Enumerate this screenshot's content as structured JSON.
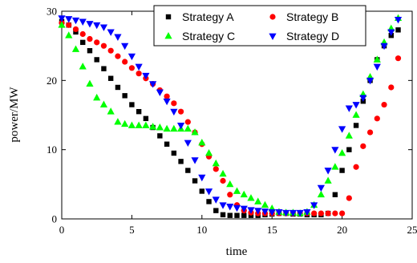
{
  "chart_data": {
    "type": "scatter",
    "title": "",
    "xlabel": "time",
    "ylabel": "power/MW",
    "xlim": [
      0,
      25
    ],
    "ylim": [
      0,
      30
    ],
    "x_ticks": [
      0,
      5,
      10,
      15,
      20,
      25
    ],
    "y_ticks": [
      0,
      10,
      20,
      30
    ],
    "grid": false,
    "legend_position": "top-right",
    "series": [
      {
        "name": "Strategy A",
        "marker": "square",
        "color": "#000000",
        "x": [
          0,
          0.5,
          1,
          1.5,
          2,
          2.5,
          3,
          3.5,
          4,
          4.5,
          5,
          5.5,
          6,
          6.5,
          7,
          7.5,
          8,
          8.5,
          9,
          9.5,
          10,
          10.5,
          11,
          11.5,
          12,
          12.5,
          13,
          13.5,
          14,
          14.5,
          15,
          15.5,
          16,
          16.5,
          17,
          17.5,
          18,
          18.5,
          19,
          19.5,
          20,
          20.5,
          21,
          21.5,
          22,
          22.5,
          23,
          23.5,
          24
        ],
        "y": [
          28.5,
          28,
          27,
          25.5,
          24.3,
          23,
          21.7,
          20.3,
          19,
          17.8,
          16.5,
          15.5,
          14.5,
          13.2,
          12,
          10.8,
          9.5,
          8.3,
          7,
          5.5,
          4,
          2.5,
          1.2,
          0.6,
          0.5,
          0.5,
          0.5,
          0.5,
          0.5,
          0.6,
          0.7,
          0.8,
          0.8,
          0.7,
          0.7,
          0.6,
          0.6,
          0.6,
          0.8,
          3.5,
          7,
          10,
          13.5,
          17,
          20,
          23,
          25,
          26.5,
          27.3
        ]
      },
      {
        "name": "Strategy B",
        "marker": "circle",
        "color": "#ff0000",
        "x": [
          0,
          0.5,
          1,
          1.5,
          2,
          2.5,
          3,
          3.5,
          4,
          4.5,
          5,
          5.5,
          6,
          6.5,
          7,
          7.5,
          8,
          8.5,
          9,
          9.5,
          10,
          10.5,
          11,
          11.5,
          12,
          12.5,
          13,
          13.5,
          14,
          14.5,
          15,
          15.5,
          16,
          16.5,
          17,
          17.5,
          18,
          18.5,
          19,
          19.5,
          20,
          20.5,
          21,
          21.5,
          22,
          22.5,
          23,
          23.5,
          24
        ],
        "y": [
          28.3,
          28,
          27.4,
          26.7,
          26,
          25.5,
          25,
          24.3,
          23.5,
          22.7,
          21.8,
          21,
          20.3,
          19.5,
          18.6,
          17.7,
          16.7,
          15.5,
          14,
          12.5,
          10.8,
          9,
          7.2,
          5.5,
          3.5,
          2,
          1.2,
          0.9,
          0.8,
          0.8,
          0.8,
          0.8,
          0.8,
          0.8,
          0.8,
          0.8,
          0.8,
          0.8,
          0.8,
          0.8,
          0.8,
          3,
          7.5,
          10.5,
          12.5,
          14.5,
          16.5,
          19,
          23.2
        ]
      },
      {
        "name": "Strategy C",
        "marker": "triangle-up",
        "color": "#00ff00",
        "x": [
          0,
          0.5,
          1,
          1.5,
          2,
          2.5,
          3,
          3.5,
          4,
          4.5,
          5,
          5.5,
          6,
          6.5,
          7,
          7.5,
          8,
          8.5,
          9,
          9.5,
          10,
          10.5,
          11,
          11.5,
          12,
          12.5,
          13,
          13.5,
          14,
          14.5,
          15,
          15.5,
          16,
          16.5,
          17,
          17.5,
          18,
          18.5,
          19,
          19.5,
          20,
          20.5,
          21,
          21.5,
          22,
          22.5,
          23,
          23.5,
          24
        ],
        "y": [
          28,
          26.5,
          24.5,
          22,
          19.5,
          17.5,
          16.5,
          15.5,
          14,
          13.7,
          13.5,
          13.5,
          13.5,
          13.3,
          13.2,
          13,
          13,
          13,
          13,
          12.5,
          11,
          9.5,
          8,
          6.5,
          5,
          4,
          3.5,
          3,
          2.5,
          2,
          1.5,
          1,
          0.9,
          0.9,
          0.8,
          1,
          2,
          3.5,
          5.5,
          7.5,
          9.5,
          12,
          15,
          18,
          20.5,
          23,
          25.5,
          27.5,
          29
        ]
      },
      {
        "name": "Strategy D",
        "marker": "triangle-down",
        "color": "#0000ff",
        "x": [
          0,
          0.5,
          1,
          1.5,
          2,
          2.5,
          3,
          3.5,
          4,
          4.5,
          5,
          5.5,
          6,
          6.5,
          7,
          7.5,
          8,
          8.5,
          9,
          9.5,
          10,
          10.5,
          11,
          11.5,
          12,
          12.5,
          13,
          13.5,
          14,
          14.5,
          15,
          15.5,
          16,
          16.5,
          17,
          17.5,
          18,
          18.5,
          19,
          19.5,
          20,
          20.5,
          21,
          21.5,
          22,
          22.5,
          23,
          23.5,
          24
        ],
        "y": [
          29,
          28.9,
          28.7,
          28.5,
          28.2,
          28,
          27.7,
          27,
          26.3,
          25,
          23.5,
          22,
          20.7,
          19.5,
          18.3,
          17,
          15.5,
          13.5,
          11,
          8.5,
          6,
          4,
          2.8,
          2,
          1.8,
          1.6,
          1.5,
          1.3,
          1.2,
          1.1,
          1,
          1,
          0.9,
          0.9,
          0.9,
          1,
          2,
          4.5,
          7,
          10,
          13,
          16,
          16.5,
          17.5,
          20,
          22,
          25,
          27,
          28.8
        ]
      }
    ]
  }
}
